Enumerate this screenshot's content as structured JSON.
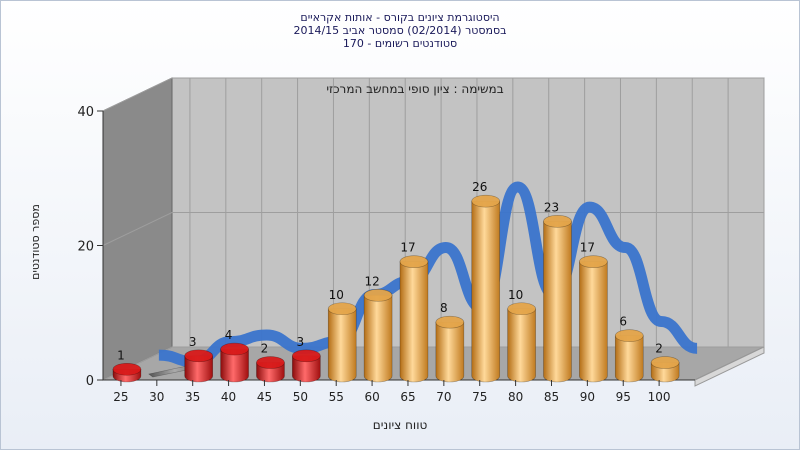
{
  "chart_data": {
    "type": "bar",
    "title_lines": [
      "היסטוגרמת ציונים בקורס - אותות אקראיים",
      "בסמסטר  (02/2014)  סמסטר אביב 2014/15",
      "סטודנטים רשומים - 170"
    ],
    "annotation": "במשימה : ציון סופי במחשב המרכזי",
    "xlabel": "טווח ציונים",
    "ylabel": "מספר סטודנטים",
    "x_ticks": [
      "25",
      "30",
      "35",
      "40",
      "45",
      "50",
      "55",
      "60",
      "65",
      "70",
      "75",
      "80",
      "85",
      "90",
      "95",
      "100"
    ],
    "y_ticks": [
      "0",
      "20",
      "40"
    ],
    "ylim": [
      0,
      40
    ],
    "categories": [
      "25",
      "30",
      "35",
      "40",
      "45",
      "50",
      "55",
      "60",
      "65",
      "70",
      "75",
      "80",
      "85",
      "90",
      "95",
      "100"
    ],
    "values": [
      1,
      0,
      3,
      4,
      2,
      3,
      10,
      12,
      17,
      8,
      26,
      10,
      23,
      17,
      6,
      2
    ],
    "value_labels": [
      "1",
      "",
      "3",
      "4",
      "2",
      "3",
      "10",
      "12",
      "17",
      "8",
      "26",
      "10",
      "23",
      "17",
      "6",
      "2"
    ],
    "bar_colors": [
      "#d81a1a",
      "#8a8a8a",
      "#d81a1a",
      "#d81a1a",
      "#d81a1a",
      "#d81a1a",
      "#e4a54a",
      "#e4a54a",
      "#e4a54a",
      "#e4a54a",
      "#e4a54a",
      "#e4a54a",
      "#e4a54a",
      "#e4a54a",
      "#e4a54a",
      "#e4a54a"
    ],
    "curve_color": "#3a74cc",
    "grid": true
  }
}
